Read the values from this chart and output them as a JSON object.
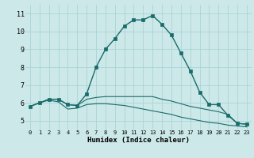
{
  "xlabel": "Humidex (Indice chaleur)",
  "background_color": "#cce8e8",
  "grid_color": "#aad4d4",
  "line_color": "#1a6b6b",
  "xlim": [
    -0.5,
    23.5
  ],
  "ylim": [
    4.5,
    11.5
  ],
  "xticks": [
    0,
    1,
    2,
    3,
    4,
    5,
    6,
    7,
    8,
    9,
    10,
    11,
    12,
    13,
    14,
    15,
    16,
    17,
    18,
    19,
    20,
    21,
    22,
    23
  ],
  "yticks": [
    5,
    6,
    7,
    8,
    9,
    10,
    11
  ],
  "series": [
    {
      "x": [
        0,
        1,
        2,
        3,
        4,
        5,
        6,
        7,
        8,
        9,
        10,
        11,
        12,
        13,
        14,
        15,
        16,
        17,
        18,
        19,
        20,
        21,
        22,
        23
      ],
      "y": [
        5.8,
        6.0,
        6.2,
        6.2,
        5.9,
        5.85,
        6.5,
        8.0,
        9.0,
        9.6,
        10.3,
        10.65,
        10.65,
        10.9,
        10.4,
        9.8,
        8.8,
        7.8,
        6.6,
        5.9,
        5.9,
        5.3,
        4.85,
        4.8
      ],
      "marker": "s",
      "markersize": 2.5,
      "linewidth": 1.0,
      "linestyle": "-"
    },
    {
      "x": [
        0,
        1,
        2,
        3,
        4,
        5,
        6,
        7,
        8,
        9,
        10,
        11,
        12,
        13,
        14,
        15,
        16,
        17,
        18,
        19,
        20,
        21,
        22,
        23
      ],
      "y": [
        5.8,
        6.0,
        6.2,
        6.2,
        5.9,
        5.85,
        6.2,
        6.3,
        6.35,
        6.35,
        6.35,
        6.35,
        6.35,
        6.35,
        6.2,
        6.1,
        5.95,
        5.8,
        5.7,
        5.6,
        5.5,
        5.35,
        4.85,
        4.8
      ],
      "marker": null,
      "markersize": 0,
      "linewidth": 0.8,
      "linestyle": "-"
    },
    {
      "x": [
        0,
        1,
        2,
        3,
        4,
        5,
        6,
        7,
        8,
        9,
        10,
        11,
        12,
        13,
        14,
        15,
        16,
        17,
        18,
        19,
        20,
        21,
        22,
        23
      ],
      "y": [
        5.8,
        6.0,
        6.15,
        6.05,
        5.65,
        5.7,
        5.9,
        5.95,
        5.95,
        5.9,
        5.85,
        5.75,
        5.65,
        5.55,
        5.45,
        5.35,
        5.2,
        5.1,
        5.0,
        4.9,
        4.85,
        4.75,
        4.7,
        4.65
      ],
      "marker": null,
      "markersize": 0,
      "linewidth": 0.8,
      "linestyle": "-"
    }
  ]
}
